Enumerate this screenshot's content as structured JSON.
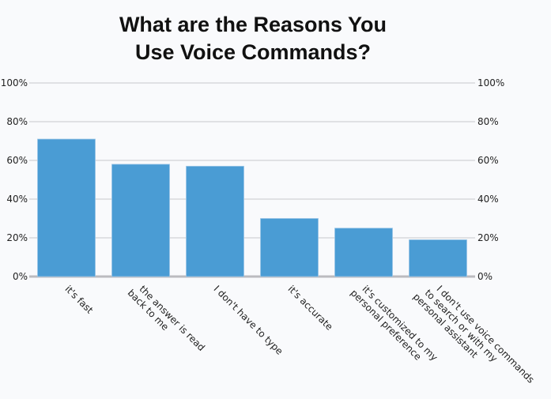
{
  "chart_data": {
    "type": "bar",
    "title_lines": [
      "What are the Reasons You",
      "Use Voice Commands?"
    ],
    "categories": [
      [
        "it's fast"
      ],
      [
        "the answer is read",
        "back to me"
      ],
      [
        "I don't have to type"
      ],
      [
        "it's accurate"
      ],
      [
        "it's customized to my",
        "personal preference"
      ],
      [
        "I don't use voice commands",
        "to search or with my",
        "personal assistant"
      ]
    ],
    "values": [
      71,
      58,
      57,
      30,
      25,
      19
    ],
    "ylim": [
      0,
      100
    ],
    "yticks": [
      0,
      20,
      40,
      60,
      80,
      100
    ],
    "ytick_labels": [
      "0%",
      "20%",
      "40%",
      "60%",
      "80%",
      "100%"
    ],
    "grid": true,
    "dual_y_axis": true,
    "bar_color": "#4a9cd4",
    "grid_color": "#c8c8cc",
    "background": "#f9fafc"
  }
}
